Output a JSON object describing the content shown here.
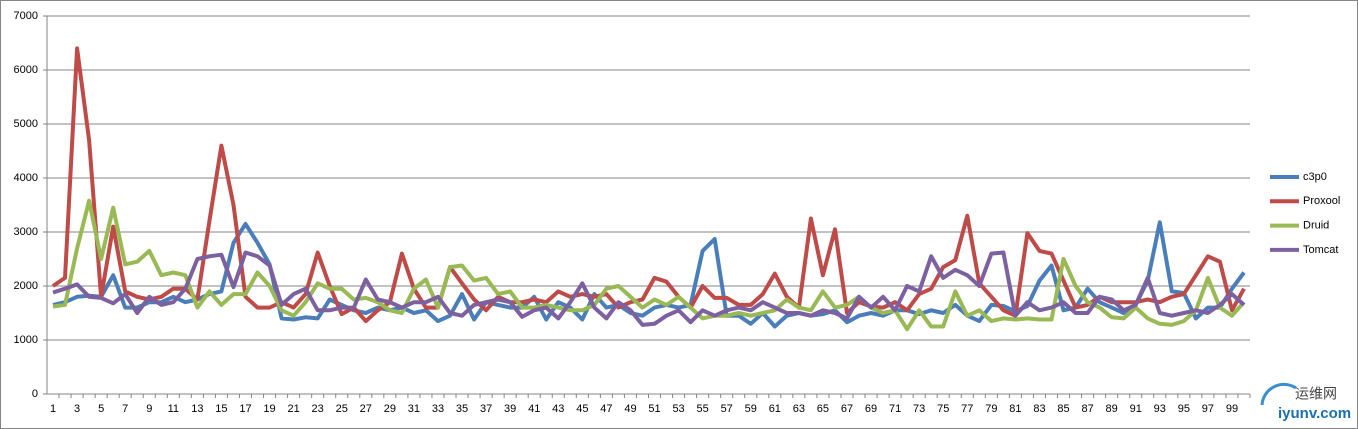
{
  "chart_data": {
    "type": "line",
    "categories": [
      1,
      null,
      3,
      null,
      5,
      null,
      7,
      null,
      9,
      null,
      11,
      null,
      13,
      null,
      15,
      null,
      17,
      null,
      19,
      null,
      21,
      null,
      23,
      null,
      25,
      null,
      27,
      null,
      29,
      null,
      31,
      null,
      33,
      null,
      35,
      null,
      37,
      null,
      39,
      null,
      41,
      null,
      43,
      null,
      45,
      null,
      47,
      null,
      49,
      null,
      51,
      null,
      53,
      null,
      55,
      null,
      57,
      null,
      59,
      null,
      61,
      null,
      63,
      null,
      65,
      null,
      67,
      null,
      69,
      null,
      71,
      null,
      73,
      null,
      75,
      null,
      77,
      null,
      79,
      null,
      81,
      null,
      83,
      null,
      85,
      null,
      87,
      null,
      89,
      null,
      91,
      null,
      93,
      null,
      95,
      null,
      97,
      null,
      99,
      null
    ],
    "series": [
      {
        "name": "c3p0",
        "color": "#4a7ebb",
        "values": [
          1650,
          1700,
          1800,
          1820,
          1800,
          2200,
          1600,
          1600,
          1700,
          1700,
          1800,
          1700,
          1750,
          1850,
          1900,
          2800,
          3150,
          2800,
          2400,
          1400,
          1380,
          1420,
          1400,
          1750,
          1650,
          1550,
          1500,
          1600,
          1550,
          1600,
          1500,
          1550,
          1350,
          1450,
          1850,
          1380,
          1700,
          1650,
          1600,
          1600,
          1800,
          1380,
          1700,
          1600,
          1380,
          1850,
          1600,
          1650,
          1500,
          1450,
          1600,
          1650,
          1600,
          1650,
          2650,
          2870,
          1450,
          1450,
          1300,
          1500,
          1250,
          1450,
          1500,
          1450,
          1480,
          1550,
          1330,
          1450,
          1500,
          1450,
          1550,
          1550,
          1480,
          1550,
          1500,
          1650,
          1450,
          1350,
          1650,
          1630,
          1530,
          1630,
          2100,
          2380,
          1550,
          1600,
          1950,
          1700,
          1600,
          1500,
          1650,
          2100,
          3180,
          1900,
          1870,
          1400,
          1600,
          1600,
          1950,
          2250
        ]
      },
      {
        "name": "Proxool",
        "color": "#be4b48",
        "values": [
          2000,
          2150,
          6400,
          4700,
          1800,
          3100,
          1900,
          1800,
          1750,
          1800,
          1950,
          1950,
          1750,
          3200,
          4600,
          3500,
          1800,
          1600,
          1600,
          1700,
          1600,
          1850,
          2620,
          2000,
          1480,
          1600,
          1350,
          1550,
          1700,
          2600,
          1950,
          1600,
          1600,
          2350,
          2050,
          1750,
          1550,
          1800,
          1700,
          1700,
          1750,
          1700,
          1900,
          1800,
          1850,
          1800,
          1850,
          1600,
          1700,
          1750,
          2150,
          2080,
          1800,
          1600,
          2000,
          1780,
          1780,
          1650,
          1650,
          1850,
          2230,
          1800,
          1600,
          3250,
          2200,
          3050,
          1500,
          1700,
          1620,
          1600,
          1700,
          1550,
          1850,
          1950,
          2350,
          2480,
          3300,
          2050,
          1800,
          1550,
          1450,
          2980,
          2650,
          2600,
          2100,
          1600,
          1650,
          1800,
          1700,
          1700,
          1700,
          1750,
          1700,
          1800,
          1850,
          2200,
          2550,
          2450,
          1550,
          1950
        ]
      },
      {
        "name": "Druid",
        "color": "#98b954",
        "values": [
          1620,
          1650,
          2700,
          3580,
          2500,
          3450,
          2400,
          2450,
          2650,
          2200,
          2250,
          2200,
          1600,
          1900,
          1650,
          1850,
          1850,
          2250,
          2000,
          1550,
          1450,
          1700,
          2050,
          1950,
          1950,
          1750,
          1780,
          1700,
          1550,
          1500,
          1950,
          2120,
          1600,
          2350,
          2380,
          2100,
          2150,
          1850,
          1900,
          1600,
          1600,
          1650,
          1600,
          1550,
          1550,
          1650,
          1950,
          2000,
          1800,
          1600,
          1750,
          1650,
          1800,
          1600,
          1400,
          1450,
          1450,
          1500,
          1450,
          1500,
          1550,
          1750,
          1600,
          1550,
          1900,
          1600,
          1650,
          1800,
          1600,
          1500,
          1550,
          1200,
          1550,
          1250,
          1250,
          1900,
          1450,
          1550,
          1350,
          1400,
          1380,
          1400,
          1380,
          1380,
          2500,
          2000,
          1700,
          1600,
          1420,
          1400,
          1600,
          1400,
          1300,
          1280,
          1350,
          1550,
          2150,
          1600,
          1450,
          1700
        ]
      },
      {
        "name": "Tomcat",
        "color": "#7d60a0",
        "values": [
          1880,
          1950,
          2030,
          1800,
          1780,
          1680,
          1850,
          1500,
          1800,
          1650,
          1700,
          1950,
          2500,
          2550,
          2580,
          1980,
          2620,
          2550,
          2380,
          1650,
          1850,
          1950,
          1550,
          1550,
          1600,
          1600,
          2120,
          1750,
          1700,
          1600,
          1700,
          1700,
          1800,
          1500,
          1450,
          1650,
          1700,
          1750,
          1700,
          1430,
          1550,
          1600,
          1400,
          1700,
          2050,
          1600,
          1400,
          1700,
          1550,
          1280,
          1300,
          1450,
          1550,
          1330,
          1550,
          1450,
          1550,
          1600,
          1550,
          1700,
          1600,
          1500,
          1500,
          1450,
          1550,
          1500,
          1400,
          1800,
          1600,
          1800,
          1550,
          2000,
          1900,
          2550,
          2150,
          2300,
          2200,
          2000,
          2600,
          2620,
          1450,
          1700,
          1550,
          1600,
          1700,
          1500,
          1500,
          1800,
          1750,
          1550,
          1650,
          2150,
          1500,
          1450,
          1500,
          1550,
          1500,
          1650,
          1850,
          1650
        ]
      }
    ],
    "ylim": [
      0,
      7000
    ],
    "yticks": [
      0,
      1000,
      2000,
      3000,
      4000,
      5000,
      6000,
      7000
    ],
    "grid": true,
    "legend": "right"
  },
  "watermark": {
    "name": "运维网",
    "url": "iyunv.com"
  }
}
